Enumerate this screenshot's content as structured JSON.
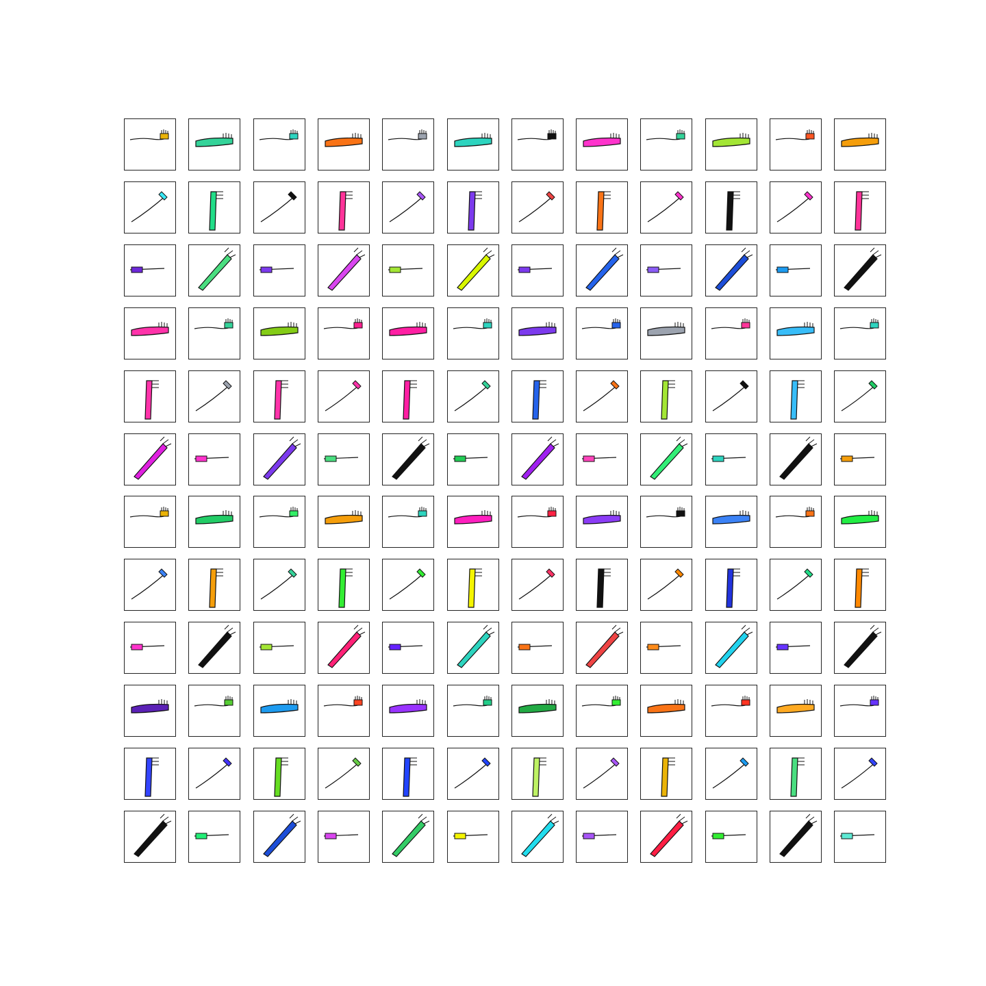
{
  "grid": {
    "rows": 12,
    "cols": 12,
    "item_type": "toothbrush",
    "cells": [
      [
        "#eab308",
        "#34d399",
        "#2dd4bf",
        "#f97316",
        "#9ca3af",
        "#2dd4bf",
        "#111111",
        "#ff33cc",
        "#34d399",
        "#a3e635",
        "#ff5522",
        "#f59e0b"
      ],
      [
        "#38e8f5",
        "#22dd88",
        "#111111",
        "#ff3399",
        "#a855f7",
        "#7c3aed",
        "#ef4444",
        "#f97316",
        "#ff33cc",
        "#111111",
        "#ff33cc",
        "#ff3399"
      ],
      [
        "#6d28d9",
        "#4ade80",
        "#7c3aed",
        "#d946ef",
        "#a3e635",
        "#d9f700",
        "#7c3aed",
        "#2563eb",
        "#8b5cf6",
        "#1d4ed8",
        "#1d9bf0",
        "#111111"
      ],
      [
        "#ff33aa",
        "#34d399",
        "#84cc16",
        "#ff1f8f",
        "#ff1fa3",
        "#2dd4bf",
        "#7c3aed",
        "#2563eb",
        "#9ca3af",
        "#ff3399",
        "#38bdf8",
        "#2dd4bf"
      ],
      [
        "#ff33aa",
        "#9ca3af",
        "#ff33aa",
        "#ff33aa",
        "#ff1fa3",
        "#34d399",
        "#2563eb",
        "#f97316",
        "#a3e635",
        "#111111",
        "#38bdf8",
        "#22cc66"
      ],
      [
        "#e020e0",
        "#ff33cc",
        "#7c3aed",
        "#4ade80",
        "#111111",
        "#22cc55",
        "#a020f0",
        "#ff44bb",
        "#33ee77",
        "#2dd4bf",
        "#111111",
        "#f59e0b"
      ],
      [
        "#eab308",
        "#22cc66",
        "#33ee66",
        "#f59e0b",
        "#2dd4bf",
        "#ff1fbf",
        "#ff2244",
        "#8b3cf6",
        "#111111",
        "#3b82f6",
        "#f97316",
        "#22ee44"
      ],
      [
        "#3b82f6",
        "#f59e0b",
        "#34d399",
        "#33ee33",
        "#33ee33",
        "#f5f500",
        "#ff3366",
        "#111111",
        "#ff8800",
        "#2233dd",
        "#22dd88",
        "#ff8800"
      ],
      [
        "#ff33cc",
        "#111111",
        "#a3e635",
        "#ff2277",
        "#6622ff",
        "#2dd4bf",
        "#f97316",
        "#ef4444",
        "#ff8c1a",
        "#22d3ee",
        "#6633ff",
        "#111111"
      ],
      [
        "#5b21b6",
        "#55cc33",
        "#1d9bf0",
        "#ff4422",
        "#9933ff",
        "#22cc88",
        "#22aa44",
        "#33ee33",
        "#f97316",
        "#ff3322",
        "#ffaa22",
        "#6633ff"
      ],
      [
        "#3344ff",
        "#4433ff",
        "#66dd22",
        "#66cc44",
        "#2244ff",
        "#2244ff",
        "#bef264",
        "#a855f7",
        "#eab308",
        "#1d9bf0",
        "#4ade80",
        "#3344ff"
      ],
      [
        "#111111",
        "#22ee77",
        "#1d4ed8",
        "#d946ef",
        "#33cc66",
        "#f5f500",
        "#22ddee",
        "#a855f7",
        "#ff1f44",
        "#33ee33",
        "#111111",
        "#5eead4"
      ]
    ]
  }
}
